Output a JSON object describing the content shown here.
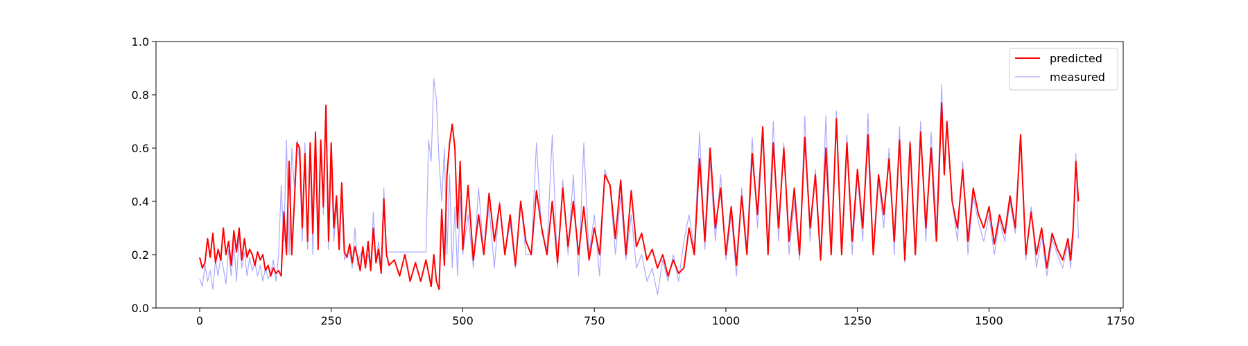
{
  "chart_data": {
    "type": "line",
    "title": "",
    "xlabel": "",
    "ylabel": "",
    "xlim": [
      -83,
      1755
    ],
    "ylim": [
      0.0,
      1.0
    ],
    "x_ticks": [
      0,
      250,
      500,
      750,
      1000,
      1250,
      1500,
      1750
    ],
    "x_tick_labels": [
      "0",
      "250",
      "500",
      "750",
      "1000",
      "1250",
      "1500",
      "1750"
    ],
    "y_ticks": [
      0.0,
      0.2,
      0.4,
      0.6,
      0.8,
      1.0
    ],
    "y_tick_labels": [
      "0.0",
      "0.2",
      "0.4",
      "0.6",
      "0.8",
      "1.0"
    ],
    "grid": false,
    "legend_position": "top-right",
    "series": [
      {
        "name": "predicted",
        "color": "#ff0000",
        "x": [
          0,
          5,
          10,
          15,
          20,
          25,
          30,
          35,
          40,
          45,
          50,
          55,
          60,
          65,
          70,
          75,
          80,
          85,
          90,
          95,
          100,
          105,
          110,
          115,
          120,
          125,
          130,
          135,
          140,
          145,
          150,
          155,
          160,
          165,
          170,
          175,
          180,
          185,
          190,
          195,
          200,
          205,
          210,
          215,
          220,
          225,
          230,
          235,
          240,
          245,
          250,
          255,
          260,
          265,
          270,
          275,
          280,
          285,
          290,
          295,
          300,
          305,
          310,
          315,
          320,
          325,
          330,
          335,
          340,
          345,
          350,
          355,
          360,
          370,
          380,
          390,
          400,
          410,
          420,
          430,
          435,
          440,
          445,
          450,
          455,
          460,
          465,
          470,
          475,
          480,
          485,
          490,
          495,
          500,
          510,
          520,
          530,
          540,
          550,
          560,
          570,
          580,
          590,
          600,
          610,
          620,
          630,
          640,
          650,
          660,
          670,
          680,
          690,
          700,
          710,
          720,
          730,
          740,
          750,
          760,
          770,
          780,
          790,
          800,
          810,
          820,
          830,
          840,
          850,
          860,
          870,
          880,
          890,
          900,
          910,
          920,
          930,
          940,
          950,
          960,
          970,
          980,
          990,
          1000,
          1010,
          1020,
          1030,
          1040,
          1050,
          1060,
          1070,
          1080,
          1090,
          1100,
          1110,
          1120,
          1130,
          1140,
          1150,
          1160,
          1170,
          1180,
          1190,
          1200,
          1210,
          1220,
          1230,
          1240,
          1250,
          1260,
          1270,
          1280,
          1290,
          1300,
          1310,
          1320,
          1330,
          1340,
          1350,
          1360,
          1370,
          1380,
          1390,
          1400,
          1410,
          1415,
          1420,
          1430,
          1440,
          1450,
          1460,
          1470,
          1480,
          1490,
          1500,
          1510,
          1520,
          1530,
          1540,
          1550,
          1560,
          1570,
          1580,
          1590,
          1600,
          1610,
          1620,
          1630,
          1640,
          1650,
          1655,
          1660,
          1665,
          1670
        ],
        "y": [
          0.19,
          0.15,
          0.17,
          0.26,
          0.19,
          0.28,
          0.17,
          0.22,
          0.18,
          0.3,
          0.2,
          0.25,
          0.16,
          0.29,
          0.21,
          0.3,
          0.18,
          0.26,
          0.19,
          0.22,
          0.2,
          0.16,
          0.21,
          0.18,
          0.2,
          0.14,
          0.16,
          0.12,
          0.15,
          0.13,
          0.14,
          0.12,
          0.36,
          0.2,
          0.55,
          0.2,
          0.4,
          0.62,
          0.6,
          0.3,
          0.58,
          0.25,
          0.62,
          0.28,
          0.66,
          0.22,
          0.63,
          0.38,
          0.76,
          0.25,
          0.62,
          0.3,
          0.42,
          0.22,
          0.47,
          0.21,
          0.19,
          0.24,
          0.17,
          0.23,
          0.19,
          0.14,
          0.23,
          0.15,
          0.25,
          0.14,
          0.3,
          0.17,
          0.22,
          0.13,
          0.41,
          0.2,
          0.16,
          0.18,
          0.12,
          0.2,
          0.1,
          0.17,
          0.1,
          0.18,
          0.13,
          0.08,
          0.2,
          0.1,
          0.07,
          0.37,
          0.16,
          0.5,
          0.62,
          0.69,
          0.6,
          0.3,
          0.55,
          0.22,
          0.46,
          0.18,
          0.35,
          0.2,
          0.43,
          0.25,
          0.39,
          0.2,
          0.35,
          0.16,
          0.4,
          0.25,
          0.2,
          0.44,
          0.3,
          0.2,
          0.4,
          0.17,
          0.45,
          0.23,
          0.4,
          0.2,
          0.38,
          0.18,
          0.3,
          0.2,
          0.5,
          0.46,
          0.26,
          0.48,
          0.2,
          0.44,
          0.23,
          0.28,
          0.18,
          0.22,
          0.15,
          0.2,
          0.12,
          0.18,
          0.13,
          0.15,
          0.3,
          0.2,
          0.56,
          0.25,
          0.6,
          0.3,
          0.45,
          0.2,
          0.38,
          0.16,
          0.42,
          0.2,
          0.58,
          0.35,
          0.68,
          0.2,
          0.62,
          0.3,
          0.6,
          0.25,
          0.45,
          0.2,
          0.64,
          0.3,
          0.5,
          0.18,
          0.6,
          0.2,
          0.71,
          0.2,
          0.62,
          0.25,
          0.52,
          0.3,
          0.65,
          0.2,
          0.5,
          0.35,
          0.56,
          0.25,
          0.63,
          0.18,
          0.62,
          0.2,
          0.66,
          0.3,
          0.6,
          0.25,
          0.77,
          0.5,
          0.7,
          0.4,
          0.3,
          0.52,
          0.25,
          0.45,
          0.35,
          0.3,
          0.38,
          0.24,
          0.35,
          0.28,
          0.42,
          0.3,
          0.65,
          0.2,
          0.36,
          0.2,
          0.3,
          0.15,
          0.28,
          0.22,
          0.18,
          0.26,
          0.18,
          0.3,
          0.55,
          0.4
        ]
      },
      {
        "name": "measured",
        "color": "#aaaaff",
        "x": [
          0,
          5,
          10,
          15,
          20,
          25,
          30,
          35,
          40,
          45,
          50,
          55,
          60,
          65,
          70,
          75,
          80,
          85,
          90,
          95,
          100,
          105,
          110,
          115,
          120,
          125,
          130,
          135,
          140,
          145,
          150,
          155,
          160,
          165,
          170,
          175,
          180,
          185,
          190,
          195,
          200,
          205,
          210,
          215,
          220,
          225,
          230,
          235,
          240,
          245,
          250,
          255,
          260,
          265,
          270,
          275,
          280,
          285,
          290,
          295,
          300,
          305,
          310,
          315,
          320,
          325,
          330,
          335,
          340,
          345,
          350,
          355,
          360,
          370,
          380,
          390,
          400,
          410,
          420,
          430,
          435,
          440,
          445,
          450,
          455,
          460,
          465,
          470,
          475,
          480,
          485,
          490,
          495,
          500,
          510,
          520,
          530,
          540,
          550,
          560,
          570,
          580,
          590,
          600,
          610,
          620,
          630,
          640,
          650,
          660,
          670,
          680,
          690,
          700,
          710,
          720,
          730,
          740,
          750,
          760,
          770,
          780,
          790,
          800,
          810,
          820,
          830,
          840,
          850,
          860,
          870,
          880,
          890,
          900,
          910,
          920,
          930,
          940,
          950,
          960,
          970,
          980,
          990,
          1000,
          1010,
          1020,
          1030,
          1040,
          1050,
          1060,
          1070,
          1080,
          1090,
          1100,
          1110,
          1120,
          1130,
          1140,
          1150,
          1160,
          1170,
          1180,
          1190,
          1200,
          1210,
          1220,
          1230,
          1240,
          1250,
          1260,
          1270,
          1280,
          1290,
          1300,
          1310,
          1320,
          1330,
          1340,
          1350,
          1360,
          1370,
          1380,
          1390,
          1400,
          1410,
          1415,
          1420,
          1430,
          1440,
          1450,
          1460,
          1470,
          1480,
          1490,
          1500,
          1510,
          1520,
          1530,
          1540,
          1550,
          1560,
          1570,
          1580,
          1590,
          1600,
          1610,
          1620,
          1630,
          1640,
          1650,
          1655,
          1660,
          1665,
          1670
        ],
        "y": [
          0.11,
          0.08,
          0.16,
          0.1,
          0.14,
          0.07,
          0.18,
          0.12,
          0.2,
          0.15,
          0.09,
          0.22,
          0.12,
          0.24,
          0.1,
          0.27,
          0.15,
          0.21,
          0.12,
          0.19,
          0.14,
          0.17,
          0.12,
          0.16,
          0.1,
          0.15,
          0.11,
          0.13,
          0.18,
          0.1,
          0.2,
          0.46,
          0.25,
          0.63,
          0.2,
          0.6,
          0.45,
          0.63,
          0.55,
          0.25,
          0.62,
          0.22,
          0.6,
          0.2,
          0.64,
          0.22,
          0.6,
          0.35,
          0.73,
          0.22,
          0.55,
          0.25,
          0.38,
          0.26,
          0.39,
          0.18,
          0.2,
          0.21,
          0.15,
          0.3,
          0.16,
          0.2,
          0.22,
          0.17,
          0.2,
          0.15,
          0.36,
          0.17,
          0.25,
          0.15,
          0.45,
          0.21,
          0.21,
          0.21,
          0.21,
          0.21,
          0.21,
          0.21,
          0.21,
          0.21,
          0.63,
          0.55,
          0.86,
          0.78,
          0.55,
          0.4,
          0.6,
          0.2,
          0.5,
          0.15,
          0.38,
          0.12,
          0.42,
          0.2,
          0.35,
          0.15,
          0.45,
          0.2,
          0.38,
          0.15,
          0.4,
          0.2,
          0.32,
          0.15,
          0.4,
          0.2,
          0.2,
          0.62,
          0.28,
          0.22,
          0.65,
          0.15,
          0.48,
          0.2,
          0.5,
          0.12,
          0.62,
          0.2,
          0.35,
          0.12,
          0.52,
          0.45,
          0.2,
          0.42,
          0.18,
          0.35,
          0.15,
          0.2,
          0.1,
          0.15,
          0.05,
          0.18,
          0.1,
          0.2,
          0.1,
          0.25,
          0.35,
          0.22,
          0.66,
          0.22,
          0.55,
          0.25,
          0.5,
          0.18,
          0.35,
          0.12,
          0.45,
          0.22,
          0.64,
          0.3,
          0.65,
          0.22,
          0.7,
          0.25,
          0.62,
          0.2,
          0.4,
          0.18,
          0.72,
          0.25,
          0.52,
          0.2,
          0.72,
          0.2,
          0.74,
          0.2,
          0.65,
          0.2,
          0.5,
          0.25,
          0.73,
          0.2,
          0.48,
          0.3,
          0.6,
          0.2,
          0.68,
          0.17,
          0.63,
          0.2,
          0.7,
          0.25,
          0.66,
          0.3,
          0.84,
          0.5,
          0.7,
          0.4,
          0.25,
          0.55,
          0.2,
          0.42,
          0.32,
          0.25,
          0.35,
          0.2,
          0.33,
          0.25,
          0.4,
          0.28,
          0.63,
          0.18,
          0.38,
          0.15,
          0.27,
          0.12,
          0.26,
          0.2,
          0.15,
          0.24,
          0.15,
          0.27,
          0.58,
          0.26
        ]
      }
    ]
  }
}
